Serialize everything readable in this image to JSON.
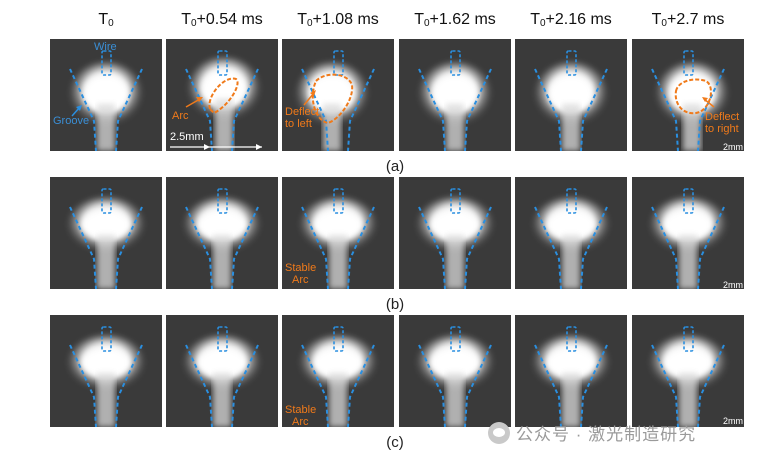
{
  "figure": {
    "columns": [
      {
        "base": "T",
        "sub": "0",
        "suffix": ""
      },
      {
        "base": "T",
        "sub": "0",
        "suffix": "+0.54 ms"
      },
      {
        "base": "T",
        "sub": "0",
        "suffix": "+1.08 ms"
      },
      {
        "base": "T",
        "sub": "0",
        "suffix": "+1.62 ms"
      },
      {
        "base": "T",
        "sub": "0",
        "suffix": "+2.16 ms"
      },
      {
        "base": "T",
        "sub": "0",
        "suffix": "+2.7 ms"
      }
    ],
    "row_labels": [
      "(a)",
      "(b)",
      "(c)"
    ],
    "annotations": {
      "wire": "Wire",
      "groove": "Groove",
      "arc": "Arc",
      "deflect_left_1": "Deflect",
      "deflect_left_2": "to left",
      "deflect_right_1": "Deflect",
      "deflect_right_2": "to right",
      "stable_1": "Stable",
      "stable_2": "Arc",
      "length": "2.5mm",
      "scale": "2mm"
    },
    "colors": {
      "groove_line": "#2a8fe0",
      "arc_outline": "#f07a1a",
      "background": "#3a3a3a"
    }
  },
  "watermark": "公众号 · 激光制造研究"
}
